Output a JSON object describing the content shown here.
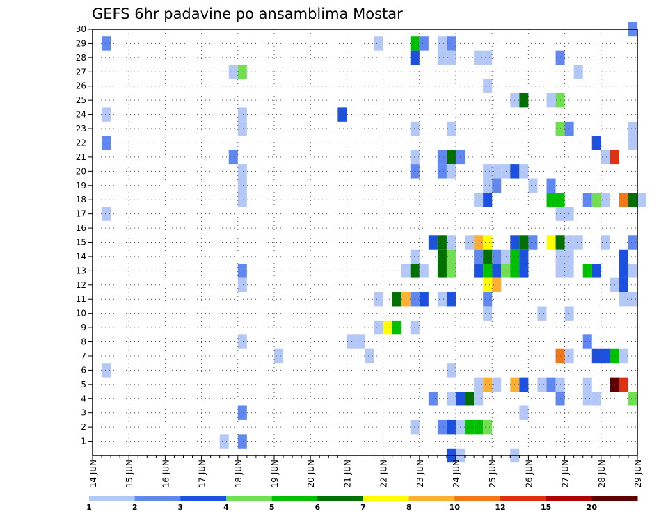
{
  "chart_data": {
    "type": "heatmap",
    "title": "GEFS 6hr padavine po ansamblima Mostar",
    "xlabel": "",
    "ylabel": "",
    "x_tick_labels": [
      "14 JUN",
      "15 JUN",
      "16 JUN",
      "17 JUN",
      "18 JUN",
      "19 JUN",
      "20 JUN",
      "21 JUN",
      "22 JUN",
      "23 JUN",
      "24 JUN",
      "25 JUN",
      "26 JUN",
      "27 JUN",
      "28 JUN",
      "29 JUN"
    ],
    "x_range_days": [
      14,
      29
    ],
    "y_tick_labels": [
      "1",
      "2",
      "3",
      "4",
      "5",
      "6",
      "7",
      "8",
      "9",
      "10",
      "11",
      "12",
      "13",
      "14",
      "15",
      "16",
      "17",
      "18",
      "19",
      "20",
      "21",
      "22",
      "23",
      "24",
      "25",
      "26",
      "27",
      "28",
      "29",
      "30"
    ],
    "y_range": [
      0,
      30
    ],
    "grid": "dotted",
    "colorbar": {
      "labels": [
        "1",
        "2",
        "3",
        "4",
        "5",
        "6",
        "7",
        "8",
        "10",
        "12",
        "15",
        "20"
      ],
      "colors": [
        "#b4c8f8",
        "#6088f0",
        "#1c50e0",
        "#70e050",
        "#00c000",
        "#007000",
        "#ffff00",
        "#ffb030",
        "#f07818",
        "#e03010",
        "#b00000",
        "#600000"
      ]
    },
    "cells_note": "each cell: [day (14.0 = 14 JUN 00z), member, colorbar level index 0-11]",
    "cells": [
      [
        14.25,
        29,
        1
      ],
      [
        14.25,
        24,
        0
      ],
      [
        14.25,
        22,
        1
      ],
      [
        14.25,
        17,
        0
      ],
      [
        14.25,
        6,
        0
      ],
      [
        17.5,
        1,
        0
      ],
      [
        17.75,
        27,
        0
      ],
      [
        17.75,
        21,
        1
      ],
      [
        18.0,
        27,
        3
      ],
      [
        18.0,
        24,
        0
      ],
      [
        18.0,
        23,
        0
      ],
      [
        18.0,
        20,
        0
      ],
      [
        18.0,
        19,
        0
      ],
      [
        18.0,
        18,
        0
      ],
      [
        18.0,
        13,
        1
      ],
      [
        18.0,
        12,
        0
      ],
      [
        18.0,
        8,
        0
      ],
      [
        18.0,
        3,
        1
      ],
      [
        18.0,
        1,
        1
      ],
      [
        19.0,
        7,
        0
      ],
      [
        20.75,
        24,
        2
      ],
      [
        21.0,
        8,
        0
      ],
      [
        21.25,
        8,
        0
      ],
      [
        21.5,
        7,
        0
      ],
      [
        21.75,
        29,
        0
      ],
      [
        21.75,
        11,
        0
      ],
      [
        21.75,
        9,
        0
      ],
      [
        22.0,
        9,
        6
      ],
      [
        22.25,
        11,
        5
      ],
      [
        22.25,
        9,
        4
      ],
      [
        22.5,
        13,
        0
      ],
      [
        22.5,
        11,
        7
      ],
      [
        22.75,
        29,
        4
      ],
      [
        22.75,
        28,
        2
      ],
      [
        22.75,
        23,
        0
      ],
      [
        22.75,
        21,
        0
      ],
      [
        22.75,
        20,
        1
      ],
      [
        22.75,
        14,
        0
      ],
      [
        22.75,
        13,
        5
      ],
      [
        22.75,
        11,
        1
      ],
      [
        22.75,
        9,
        0
      ],
      [
        22.75,
        2,
        0
      ],
      [
        23.0,
        29,
        1
      ],
      [
        23.0,
        13,
        0
      ],
      [
        23.0,
        11,
        2
      ],
      [
        23.25,
        15,
        2
      ],
      [
        23.25,
        4,
        1
      ],
      [
        23.5,
        29,
        0
      ],
      [
        23.5,
        28,
        0
      ],
      [
        23.5,
        21,
        1
      ],
      [
        23.5,
        20,
        1
      ],
      [
        23.5,
        15,
        5
      ],
      [
        23.5,
        14,
        5
      ],
      [
        23.5,
        13,
        5
      ],
      [
        23.5,
        11,
        0
      ],
      [
        23.5,
        2,
        1
      ],
      [
        23.75,
        29,
        1
      ],
      [
        23.75,
        28,
        0
      ],
      [
        23.75,
        23,
        0
      ],
      [
        23.75,
        21,
        5
      ],
      [
        23.75,
        20,
        0
      ],
      [
        23.75,
        15,
        0
      ],
      [
        23.75,
        14,
        3
      ],
      [
        23.75,
        13,
        3
      ],
      [
        23.75,
        11,
        2
      ],
      [
        23.75,
        6,
        0
      ],
      [
        23.75,
        4,
        0
      ],
      [
        23.75,
        2,
        2
      ],
      [
        23.75,
        0,
        2
      ],
      [
        24.0,
        21,
        1
      ],
      [
        24.0,
        4,
        2
      ],
      [
        24.0,
        2,
        0
      ],
      [
        24.0,
        0,
        0
      ],
      [
        24.25,
        15,
        0
      ],
      [
        24.25,
        4,
        5
      ],
      [
        24.25,
        2,
        4
      ],
      [
        24.5,
        28,
        0
      ],
      [
        24.5,
        18,
        0
      ],
      [
        24.5,
        15,
        7
      ],
      [
        24.5,
        14,
        1
      ],
      [
        24.5,
        13,
        2
      ],
      [
        24.5,
        5,
        0
      ],
      [
        24.5,
        4,
        0
      ],
      [
        24.5,
        2,
        4
      ],
      [
        24.75,
        28,
        0
      ],
      [
        24.75,
        26,
        0
      ],
      [
        24.75,
        20,
        0
      ],
      [
        24.75,
        19,
        0
      ],
      [
        24.75,
        18,
        2
      ],
      [
        24.75,
        15,
        6
      ],
      [
        24.75,
        14,
        5
      ],
      [
        24.75,
        13,
        4
      ],
      [
        24.75,
        12,
        6
      ],
      [
        24.75,
        11,
        1
      ],
      [
        24.75,
        10,
        0
      ],
      [
        24.75,
        5,
        7
      ],
      [
        24.75,
        2,
        3
      ],
      [
        25.0,
        20,
        0
      ],
      [
        25.0,
        19,
        1
      ],
      [
        25.0,
        14,
        1
      ],
      [
        25.0,
        13,
        2
      ],
      [
        25.0,
        12,
        7
      ],
      [
        25.0,
        5,
        0
      ],
      [
        25.25,
        20,
        0
      ],
      [
        25.25,
        14,
        0
      ],
      [
        25.25,
        13,
        3
      ],
      [
        25.5,
        25,
        0
      ],
      [
        25.5,
        20,
        2
      ],
      [
        25.5,
        15,
        2
      ],
      [
        25.5,
        14,
        4
      ],
      [
        25.5,
        13,
        4
      ],
      [
        25.5,
        5,
        7
      ],
      [
        25.5,
        0,
        0
      ],
      [
        25.75,
        25,
        5
      ],
      [
        25.75,
        20,
        0
      ],
      [
        25.75,
        15,
        5
      ],
      [
        25.75,
        14,
        2
      ],
      [
        25.75,
        13,
        2
      ],
      [
        25.75,
        5,
        2
      ],
      [
        25.75,
        3,
        0
      ],
      [
        26.0,
        19,
        0
      ],
      [
        26.0,
        15,
        1
      ],
      [
        26.25,
        10,
        0
      ],
      [
        26.25,
        5,
        0
      ],
      [
        26.5,
        25,
        0
      ],
      [
        26.5,
        19,
        1
      ],
      [
        26.5,
        18,
        4
      ],
      [
        26.5,
        15,
        6
      ],
      [
        26.5,
        5,
        1
      ],
      [
        26.75,
        28,
        1
      ],
      [
        26.75,
        25,
        3
      ],
      [
        26.75,
        23,
        3
      ],
      [
        26.75,
        18,
        4
      ],
      [
        26.75,
        17,
        0
      ],
      [
        26.75,
        15,
        5
      ],
      [
        26.75,
        14,
        0
      ],
      [
        26.75,
        13,
        0
      ],
      [
        26.75,
        7,
        8
      ],
      [
        26.75,
        5,
        0
      ],
      [
        26.75,
        4,
        1
      ],
      [
        27.0,
        23,
        1
      ],
      [
        27.0,
        17,
        0
      ],
      [
        27.0,
        15,
        0
      ],
      [
        27.0,
        14,
        0
      ],
      [
        27.0,
        13,
        0
      ],
      [
        27.0,
        10,
        0
      ],
      [
        27.0,
        7,
        0
      ],
      [
        27.25,
        27,
        0
      ],
      [
        27.25,
        15,
        0
      ],
      [
        27.5,
        18,
        1
      ],
      [
        27.5,
        13,
        4
      ],
      [
        27.5,
        8,
        1
      ],
      [
        27.5,
        5,
        0
      ],
      [
        27.5,
        4,
        0
      ],
      [
        27.75,
        22,
        2
      ],
      [
        27.75,
        18,
        3
      ],
      [
        27.75,
        13,
        2
      ],
      [
        27.75,
        7,
        2
      ],
      [
        27.75,
        4,
        0
      ],
      [
        28.0,
        21,
        0
      ],
      [
        28.0,
        18,
        0
      ],
      [
        28.0,
        15,
        0
      ],
      [
        28.0,
        7,
        2
      ],
      [
        28.25,
        21,
        9
      ],
      [
        28.25,
        12,
        0
      ],
      [
        28.25,
        7,
        4
      ],
      [
        28.25,
        5,
        11
      ],
      [
        28.5,
        18,
        8
      ],
      [
        28.5,
        14,
        2
      ],
      [
        28.5,
        13,
        2
      ],
      [
        28.5,
        12,
        2
      ],
      [
        28.5,
        11,
        0
      ],
      [
        28.5,
        7,
        0
      ],
      [
        28.5,
        5,
        9
      ],
      [
        28.75,
        30,
        1
      ],
      [
        28.75,
        23,
        0
      ],
      [
        28.75,
        22,
        0
      ],
      [
        28.75,
        18,
        5
      ],
      [
        28.75,
        15,
        1
      ],
      [
        28.75,
        13,
        0
      ],
      [
        28.75,
        11,
        0
      ],
      [
        28.75,
        4,
        3
      ],
      [
        29.0,
        18,
        0
      ]
    ]
  }
}
